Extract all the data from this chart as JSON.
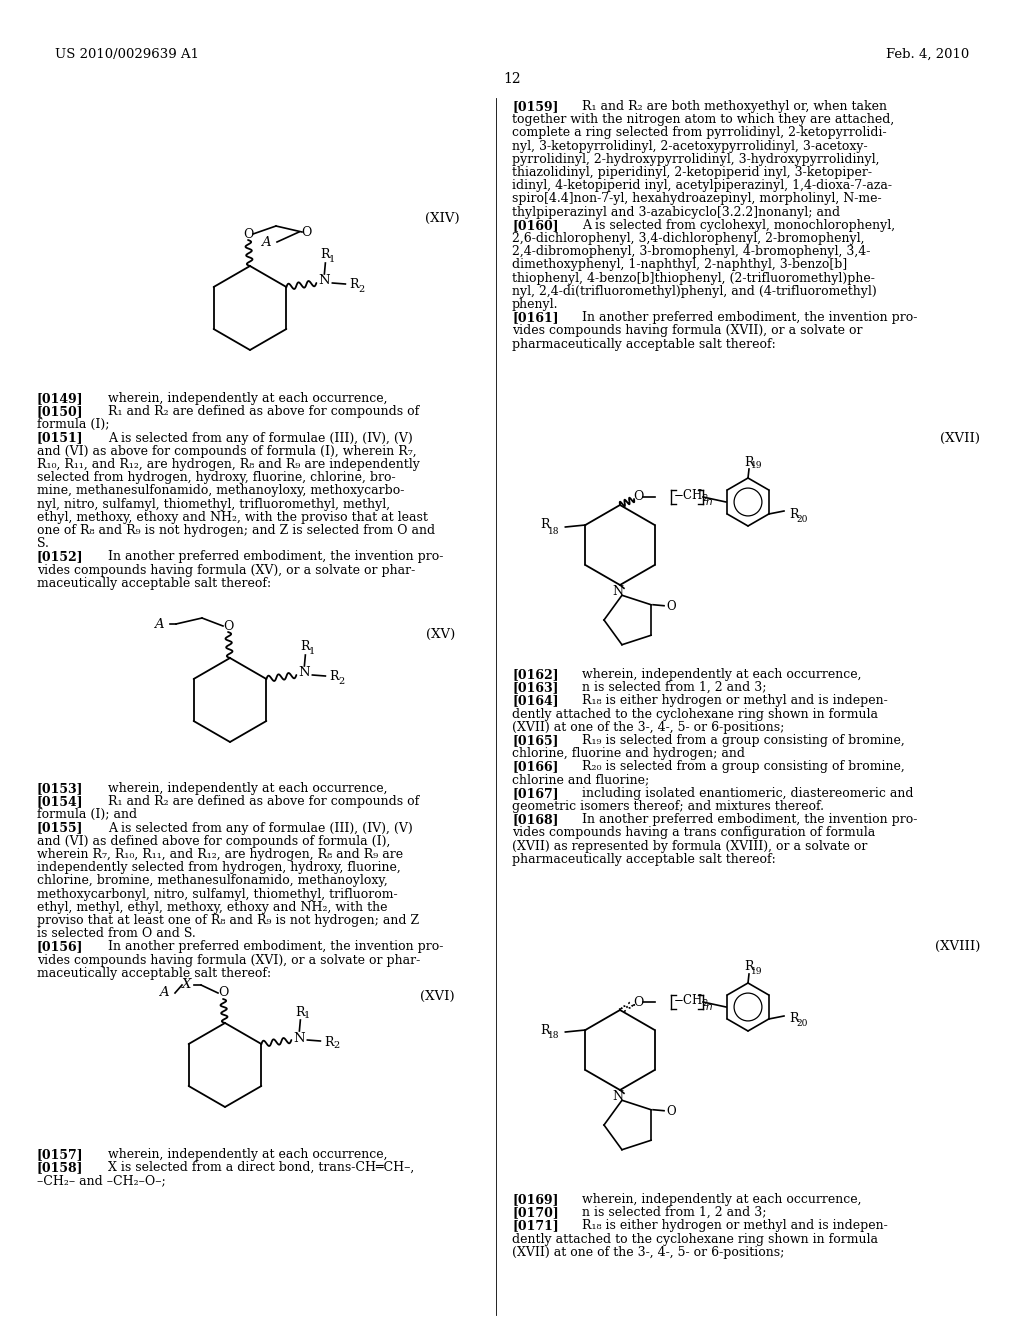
{
  "page_number": "12",
  "header_left": "US 2010/0029639 A1",
  "header_right": "Feb. 4, 2010",
  "background_color": "#ffffff",
  "text_color": "#000000"
}
